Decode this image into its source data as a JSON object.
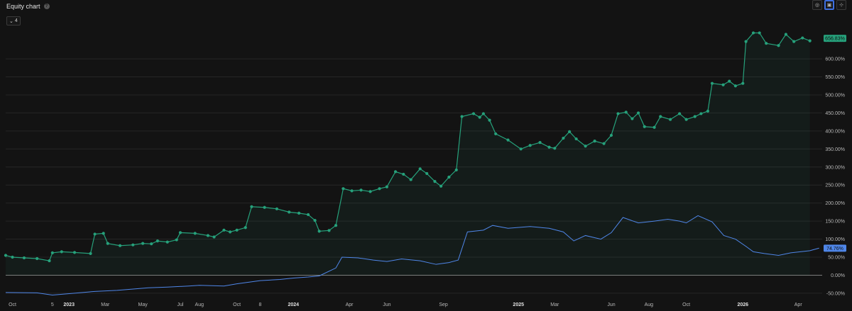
{
  "header": {
    "title": "Equity chart",
    "help_icon": "question-circle-icon"
  },
  "toolbar": {
    "zoom_label": "4",
    "zoom_icon": "chevron-down-icon",
    "tools": [
      "target-icon",
      "camera-icon",
      "crosshair-icon"
    ]
  },
  "colors": {
    "equity": "#26a17b",
    "benchmark": "#4f86e8",
    "positive": "#1f7a5c",
    "negative": "#b13a3a",
    "grid": "#262626"
  },
  "chart_data": {
    "type": "line",
    "ylim": [
      -62,
      720
    ],
    "y_ticks": [
      -50,
      0,
      50,
      100,
      150,
      200,
      250,
      300,
      350,
      400,
      450,
      500,
      550,
      600
    ],
    "y_tick_labels": [
      "-50.00%",
      "0.00%",
      "50.00%",
      "100.00%",
      "150.00%",
      "200.00%",
      "250.00%",
      "300.00%",
      "350.00%",
      "400.00%",
      "450.00%",
      "500.00%",
      "550.00%",
      "600.00%"
    ],
    "x_range": [
      "2022-09-20",
      "2026-05-10"
    ],
    "x_ticks": [
      {
        "date": "2022-10-01",
        "label": "Oct"
      },
      {
        "date": "2022-12-05",
        "label": "5"
      },
      {
        "date": "2023-01-01",
        "label": "2023",
        "year": true
      },
      {
        "date": "2023-03-01",
        "label": "Mar"
      },
      {
        "date": "2023-05-01",
        "label": "May"
      },
      {
        "date": "2023-07-01",
        "label": "Jul"
      },
      {
        "date": "2023-08-01",
        "label": "Aug"
      },
      {
        "date": "2023-10-01",
        "label": "Oct"
      },
      {
        "date": "2023-11-08",
        "label": "8"
      },
      {
        "date": "2024-01-01",
        "label": "2024",
        "year": true
      },
      {
        "date": "2024-04-01",
        "label": "Apr"
      },
      {
        "date": "2024-06-01",
        "label": "Jun"
      },
      {
        "date": "2024-09-01",
        "label": "Sep"
      },
      {
        "date": "2025-01-01",
        "label": "2025",
        "year": true
      },
      {
        "date": "2025-03-01",
        "label": "Mar"
      },
      {
        "date": "2025-06-01",
        "label": "Jun"
      },
      {
        "date": "2025-08-01",
        "label": "Aug"
      },
      {
        "date": "2025-10-01",
        "label": "Oct"
      },
      {
        "date": "2026-01-01",
        "label": "2026",
        "year": true
      },
      {
        "date": "2026-04-01",
        "label": "Apr"
      }
    ],
    "series": [
      {
        "role": "equity",
        "points": [
          [
            "2022-09-20",
            55
          ],
          [
            "2022-10-01",
            50
          ],
          [
            "2022-10-20",
            48
          ],
          [
            "2022-11-10",
            46
          ],
          [
            "2022-11-30",
            40
          ],
          [
            "2022-12-05",
            62
          ],
          [
            "2022-12-20",
            65
          ],
          [
            "2023-01-10",
            63
          ],
          [
            "2023-02-05",
            60
          ],
          [
            "2023-02-12",
            114
          ],
          [
            "2023-02-26",
            116
          ],
          [
            "2023-03-05",
            88
          ],
          [
            "2023-03-25",
            82
          ],
          [
            "2023-04-15",
            84
          ],
          [
            "2023-05-01",
            88
          ],
          [
            "2023-05-15",
            87
          ],
          [
            "2023-05-25",
            95
          ],
          [
            "2023-06-10",
            92
          ],
          [
            "2023-06-25",
            98
          ],
          [
            "2023-07-01",
            118
          ],
          [
            "2023-07-25",
            116
          ],
          [
            "2023-08-15",
            110
          ],
          [
            "2023-08-25",
            106
          ],
          [
            "2023-09-10",
            125
          ],
          [
            "2023-09-20",
            120
          ],
          [
            "2023-10-01",
            125
          ],
          [
            "2023-10-15",
            132
          ],
          [
            "2023-10-25",
            190
          ],
          [
            "2023-11-15",
            188
          ],
          [
            "2023-12-05",
            184
          ],
          [
            "2023-12-25",
            175
          ],
          [
            "2024-01-10",
            172
          ],
          [
            "2024-01-25",
            168
          ],
          [
            "2024-02-05",
            152
          ],
          [
            "2024-02-12",
            122
          ],
          [
            "2024-02-28",
            124
          ],
          [
            "2024-03-10",
            138
          ],
          [
            "2024-03-22",
            240
          ],
          [
            "2024-04-05",
            234
          ],
          [
            "2024-04-20",
            236
          ],
          [
            "2024-05-05",
            232
          ],
          [
            "2024-05-20",
            240
          ],
          [
            "2024-06-01",
            245
          ],
          [
            "2024-06-15",
            287
          ],
          [
            "2024-06-28",
            280
          ],
          [
            "2024-07-10",
            265
          ],
          [
            "2024-07-25",
            295
          ],
          [
            "2024-08-05",
            282
          ],
          [
            "2024-08-18",
            260
          ],
          [
            "2024-08-28",
            247
          ],
          [
            "2024-09-10",
            272
          ],
          [
            "2024-09-22",
            292
          ],
          [
            "2024-10-01",
            440
          ],
          [
            "2024-10-20",
            448
          ],
          [
            "2024-10-30",
            438
          ],
          [
            "2024-11-05",
            448
          ],
          [
            "2024-11-15",
            430
          ],
          [
            "2024-11-25",
            392
          ],
          [
            "2024-12-15",
            375
          ],
          [
            "2025-01-05",
            350
          ],
          [
            "2025-01-20",
            360
          ],
          [
            "2025-02-05",
            368
          ],
          [
            "2025-02-20",
            355
          ],
          [
            "2025-03-01",
            352
          ],
          [
            "2025-03-15",
            380
          ],
          [
            "2025-03-25",
            398
          ],
          [
            "2025-04-05",
            378
          ],
          [
            "2025-04-20",
            358
          ],
          [
            "2025-05-05",
            372
          ],
          [
            "2025-05-20",
            365
          ],
          [
            "2025-06-01",
            388
          ],
          [
            "2025-06-12",
            448
          ],
          [
            "2025-06-25",
            452
          ],
          [
            "2025-07-05",
            434
          ],
          [
            "2025-07-15",
            450
          ],
          [
            "2025-07-25",
            412
          ],
          [
            "2025-08-10",
            410
          ],
          [
            "2025-08-20",
            440
          ],
          [
            "2025-09-05",
            432
          ],
          [
            "2025-09-20",
            448
          ],
          [
            "2025-10-01",
            432
          ],
          [
            "2025-10-15",
            440
          ],
          [
            "2025-10-25",
            448
          ],
          [
            "2025-11-05",
            455
          ],
          [
            "2025-11-12",
            532
          ],
          [
            "2025-11-30",
            528
          ],
          [
            "2025-12-10",
            538
          ],
          [
            "2025-12-20",
            525
          ],
          [
            "2026-01-01",
            532
          ],
          [
            "2026-01-06",
            648
          ],
          [
            "2026-01-18",
            672
          ],
          [
            "2026-01-28",
            672
          ],
          [
            "2026-02-08",
            643
          ],
          [
            "2026-02-28",
            637
          ],
          [
            "2026-03-12",
            668
          ],
          [
            "2026-03-25",
            648
          ],
          [
            "2026-04-08",
            658
          ],
          [
            "2026-04-20",
            650
          ]
        ]
      },
      {
        "role": "benchmark",
        "points": [
          [
            "2022-09-20",
            -48
          ],
          [
            "2022-11-10",
            -49
          ],
          [
            "2022-12-05",
            -55
          ],
          [
            "2023-01-10",
            -50
          ],
          [
            "2023-02-12",
            -45
          ],
          [
            "2023-03-20",
            -42
          ],
          [
            "2023-05-10",
            -35
          ],
          [
            "2023-06-10",
            -33
          ],
          [
            "2023-07-15",
            -30
          ],
          [
            "2023-08-01",
            -28
          ],
          [
            "2023-09-10",
            -30
          ],
          [
            "2023-10-01",
            -24
          ],
          [
            "2023-11-08",
            -15
          ],
          [
            "2023-12-10",
            -12
          ],
          [
            "2024-01-01",
            -8
          ],
          [
            "2024-01-25",
            -5
          ],
          [
            "2024-02-12",
            -2
          ],
          [
            "2024-03-10",
            20
          ],
          [
            "2024-03-20",
            50
          ],
          [
            "2024-04-15",
            48
          ],
          [
            "2024-05-10",
            42
          ],
          [
            "2024-06-01",
            38
          ],
          [
            "2024-06-25",
            45
          ],
          [
            "2024-07-25",
            40
          ],
          [
            "2024-08-20",
            30
          ],
          [
            "2024-09-10",
            35
          ],
          [
            "2024-09-25",
            42
          ],
          [
            "2024-10-10",
            120
          ],
          [
            "2024-11-05",
            125
          ],
          [
            "2024-11-20",
            138
          ],
          [
            "2024-12-15",
            130
          ],
          [
            "2025-01-20",
            135
          ],
          [
            "2025-02-20",
            130
          ],
          [
            "2025-03-15",
            120
          ],
          [
            "2025-04-01",
            95
          ],
          [
            "2025-04-20",
            110
          ],
          [
            "2025-05-15",
            100
          ],
          [
            "2025-06-01",
            118
          ],
          [
            "2025-06-20",
            160
          ],
          [
            "2025-07-15",
            145
          ],
          [
            "2025-08-10",
            150
          ],
          [
            "2025-09-01",
            155
          ],
          [
            "2025-09-20",
            150
          ],
          [
            "2025-10-01",
            145
          ],
          [
            "2025-10-20",
            165
          ],
          [
            "2025-11-12",
            148
          ],
          [
            "2025-12-01",
            110
          ],
          [
            "2025-12-20",
            100
          ],
          [
            "2026-01-06",
            80
          ],
          [
            "2026-01-18",
            65
          ],
          [
            "2026-02-05",
            60
          ],
          [
            "2026-02-28",
            55
          ],
          [
            "2026-03-20",
            62
          ],
          [
            "2026-04-20",
            68
          ],
          [
            "2026-05-05",
            75
          ]
        ]
      }
    ],
    "last_value_labels": [
      {
        "role": "equity",
        "label": "656.83%",
        "value": 656.83
      },
      {
        "role": "benchmark",
        "label": "74.76%",
        "value": 74.76
      }
    ]
  }
}
